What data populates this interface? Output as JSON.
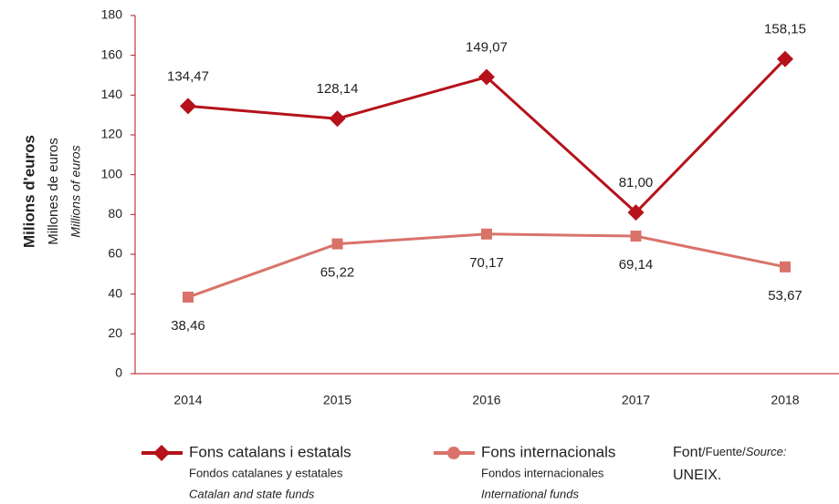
{
  "chart_data": {
    "type": "line",
    "y_axis_labels": [
      "Milions d'euros",
      "Millones de euros",
      "Millions of euros"
    ],
    "categories": [
      "2014",
      "2015",
      "2016",
      "2017",
      "2018"
    ],
    "series": [
      {
        "name": "Fons catalans i estatals",
        "name_es": "Fondos catalanes y estatales",
        "name_en": "Catalan and state funds",
        "color": "#b5121b",
        "values": [
          134.47,
          128.14,
          149.07,
          81.0,
          158.15
        ],
        "value_labels": [
          "134,47",
          "128,14",
          "149,07",
          "81,00",
          "158,15"
        ]
      },
      {
        "name": "Fons internacionals",
        "name_es": "Fondos internacionales",
        "name_en": "International funds",
        "color": "#d9736a",
        "values": [
          38.46,
          65.22,
          70.17,
          69.14,
          53.67
        ],
        "value_labels": [
          "38,46",
          "65,22",
          "70,17",
          "69,14",
          "53,67"
        ]
      }
    ],
    "ylim": [
      0,
      180
    ],
    "yticks": [
      0,
      20,
      40,
      60,
      80,
      100,
      120,
      140,
      160,
      180
    ],
    "source": {
      "label_ca": "Font",
      "label_es": "/Fuente/",
      "label_en": "Source:",
      "text": "UNEIX."
    }
  }
}
